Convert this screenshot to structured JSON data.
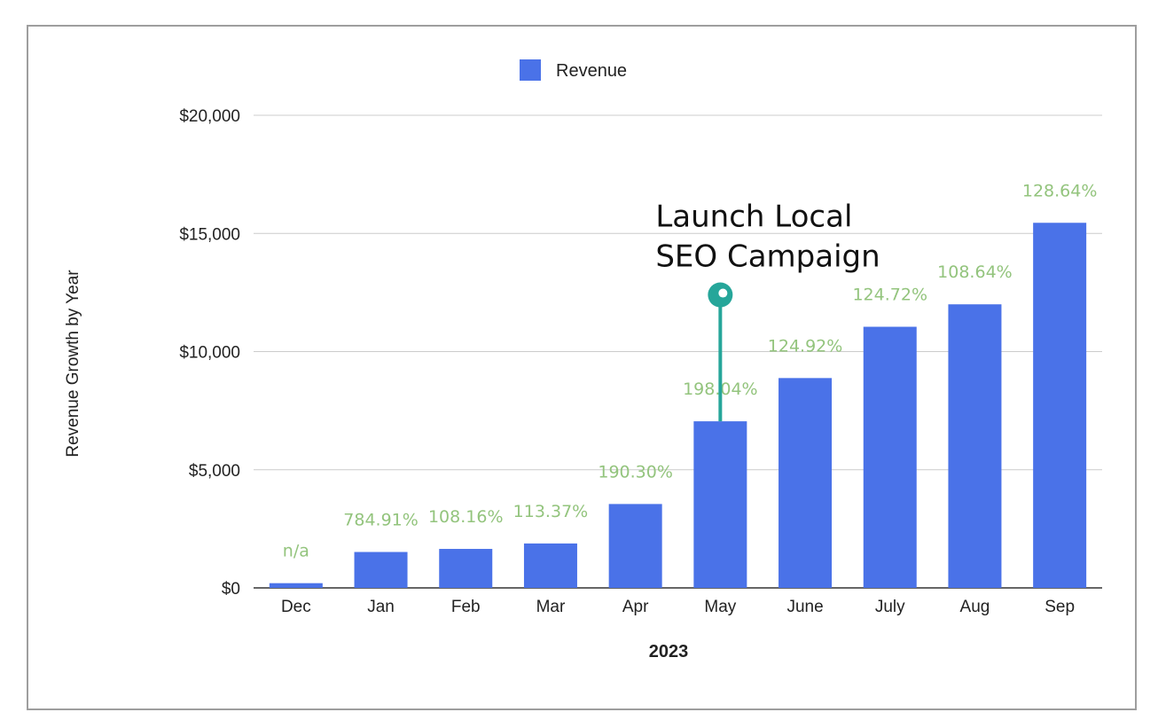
{
  "chart_data": {
    "type": "bar",
    "title": "",
    "xlabel": "2023",
    "ylabel": "Revenue Growth by Year",
    "ylim": [
      0,
      20000
    ],
    "yticks": [
      0,
      5000,
      10000,
      15000,
      20000
    ],
    "ytick_labels": [
      "$0",
      "$5,000",
      "$10,000",
      "$15,000",
      "$20,000"
    ],
    "grid": true,
    "legend": {
      "position": "top-center",
      "entries": [
        "Revenue"
      ]
    },
    "categories": [
      "Dec",
      "Jan",
      "Feb",
      "Mar",
      "Apr",
      "May",
      "June",
      "July",
      "Aug",
      "Sep"
    ],
    "series": [
      {
        "name": "Revenue",
        "color": "#4a72e8",
        "values": [
          200,
          1520,
          1650,
          1880,
          3550,
          7050,
          8880,
          11050,
          12000,
          15450
        ],
        "labels": [
          "n/a",
          "784.91%",
          "108.16%",
          "113.37%",
          "190.30%",
          "198.04%",
          "124.92%",
          "124.72%",
          "108.64%",
          "128.64%"
        ]
      }
    ],
    "annotations": [
      {
        "category": "May",
        "lines": [
          "Launch Local",
          "SEO Campaign"
        ],
        "marker_value": 12400,
        "color": "#26a69a"
      }
    ],
    "label_color": "#93c47d"
  }
}
